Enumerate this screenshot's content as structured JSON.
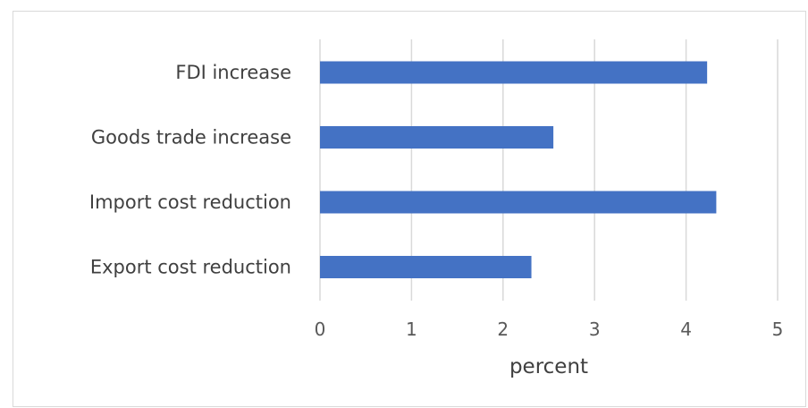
{
  "chart_data": {
    "type": "bar",
    "orientation": "horizontal",
    "categories": [
      "FDI increase",
      "Goods trade increase",
      "Import cost reduction",
      "Export cost reduction"
    ],
    "values": [
      4.23,
      2.55,
      4.33,
      2.31
    ],
    "xlabel": "percent",
    "ylabel": "",
    "xlim": [
      0,
      5
    ],
    "xticks": [
      "0",
      "1",
      "2",
      "3",
      "4",
      "5"
    ],
    "grid": "vertical",
    "bar_color": "#4472c4",
    "grid_color": "#d9d9d9"
  }
}
